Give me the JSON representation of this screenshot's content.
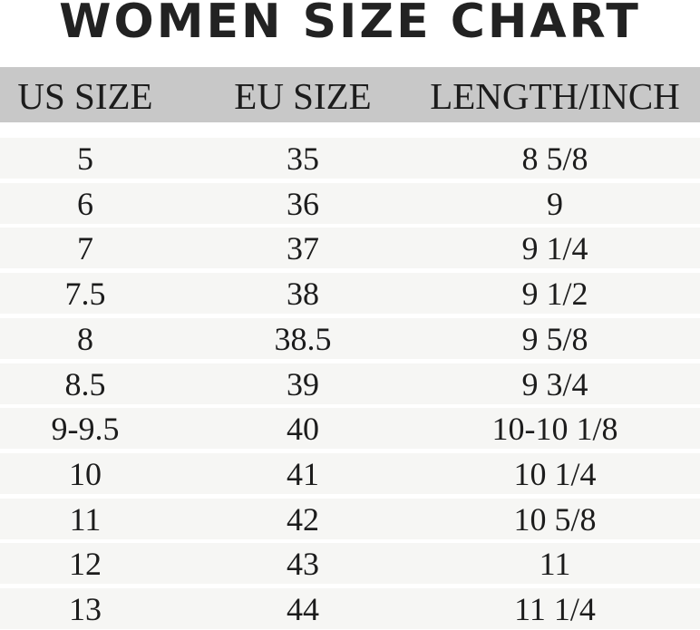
{
  "chart_data": {
    "type": "table",
    "title": "WOMEN SIZE CHART",
    "columns": [
      "US SIZE",
      "EU SIZE",
      "LENGTH/INCH"
    ],
    "rows": [
      [
        "5",
        "35",
        "8 5/8"
      ],
      [
        "6",
        "36",
        "9"
      ],
      [
        "7",
        "37",
        "9 1/4"
      ],
      [
        "7.5",
        "38",
        "9 1/2"
      ],
      [
        "8",
        "38.5",
        "9 5/8"
      ],
      [
        "8.5",
        "39",
        "9 3/4"
      ],
      [
        "9-9.5",
        "40",
        "10-10 1/8"
      ],
      [
        "10",
        "41",
        "10 1/4"
      ],
      [
        "11",
        "42",
        "10 5/8"
      ],
      [
        "12",
        "43",
        "11"
      ],
      [
        "13",
        "44",
        "11 1/4"
      ]
    ],
    "colors": {
      "header_bg": "#c8c8c8",
      "row_bg": "#f6f6f4",
      "text": "#1c1c1c"
    }
  }
}
